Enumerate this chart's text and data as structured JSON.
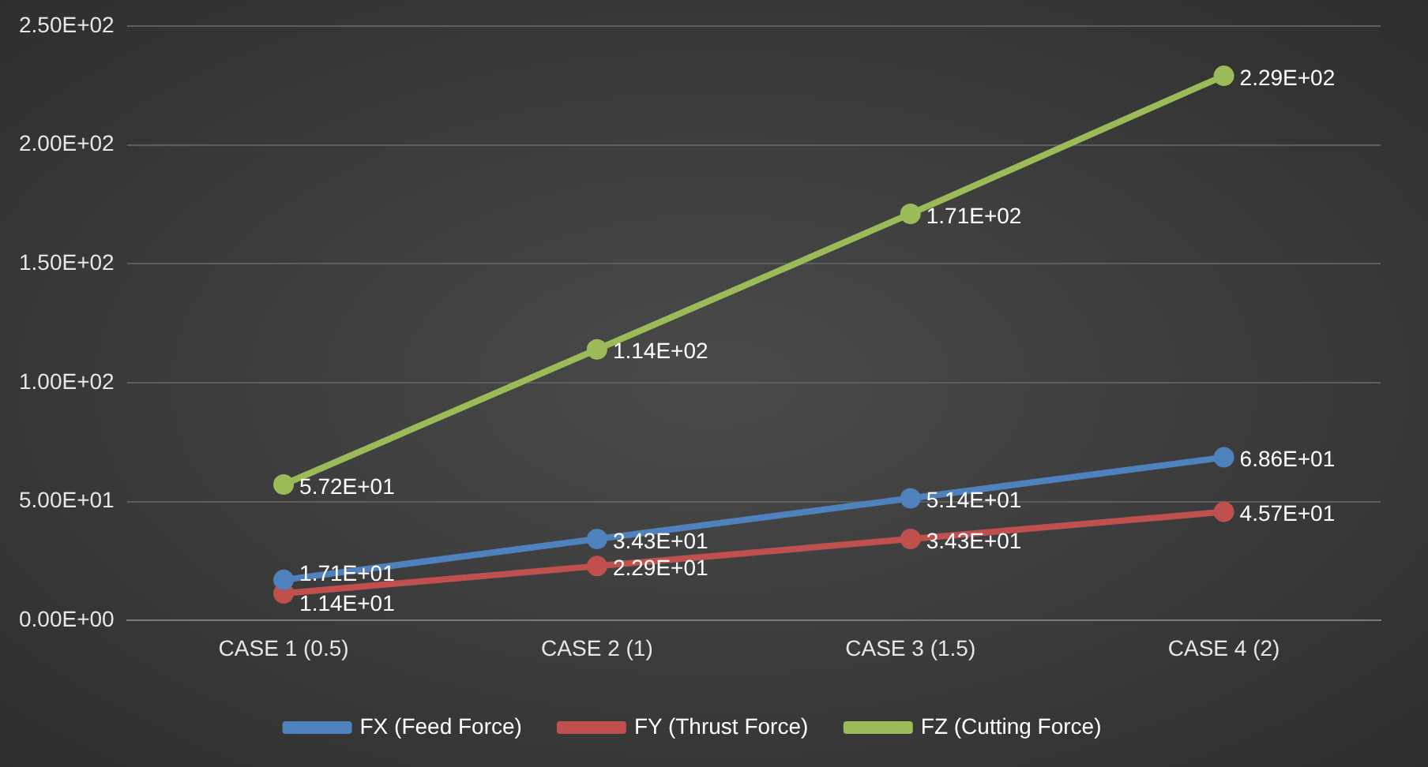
{
  "chart_data": {
    "type": "line",
    "categories": [
      "CASE 1 (0.5)",
      "CASE 2 (1)",
      "CASE 3 (1.5)",
      "CASE 4 (2)"
    ],
    "series": [
      {
        "name": "FX (Feed Force)",
        "color": "#4f81bd",
        "values": [
          17.1,
          34.3,
          51.4,
          68.6
        ],
        "value_labels": [
          "1.71E+01",
          "3.43E+01",
          "5.14E+01",
          "6.86E+01"
        ]
      },
      {
        "name": "FY (Thrust Force)",
        "color": "#c0504d",
        "values": [
          11.4,
          22.9,
          34.3,
          45.7
        ],
        "value_labels": [
          "1.14E+01",
          "2.29E+01",
          "3.43E+01",
          "4.57E+01"
        ]
      },
      {
        "name": "FZ (Cutting Force)",
        "color": "#9bbb59",
        "values": [
          57.2,
          114,
          171,
          229
        ],
        "value_labels": [
          "5.72E+01",
          "1.14E+02",
          "1.71E+02",
          "2.29E+02"
        ]
      }
    ],
    "ylim": [
      0,
      250
    ],
    "yticks": [
      {
        "value": 0,
        "label": "0.00E+00"
      },
      {
        "value": 50,
        "label": "5.00E+01"
      },
      {
        "value": 100,
        "label": "1.00E+02"
      },
      {
        "value": 150,
        "label": "1.50E+02"
      },
      {
        "value": 200,
        "label": "2.00E+02"
      },
      {
        "value": 250,
        "label": "2.50E+02"
      }
    ],
    "grid": "y",
    "legend": "bottom",
    "marker": "circle",
    "line_style": "solid"
  }
}
